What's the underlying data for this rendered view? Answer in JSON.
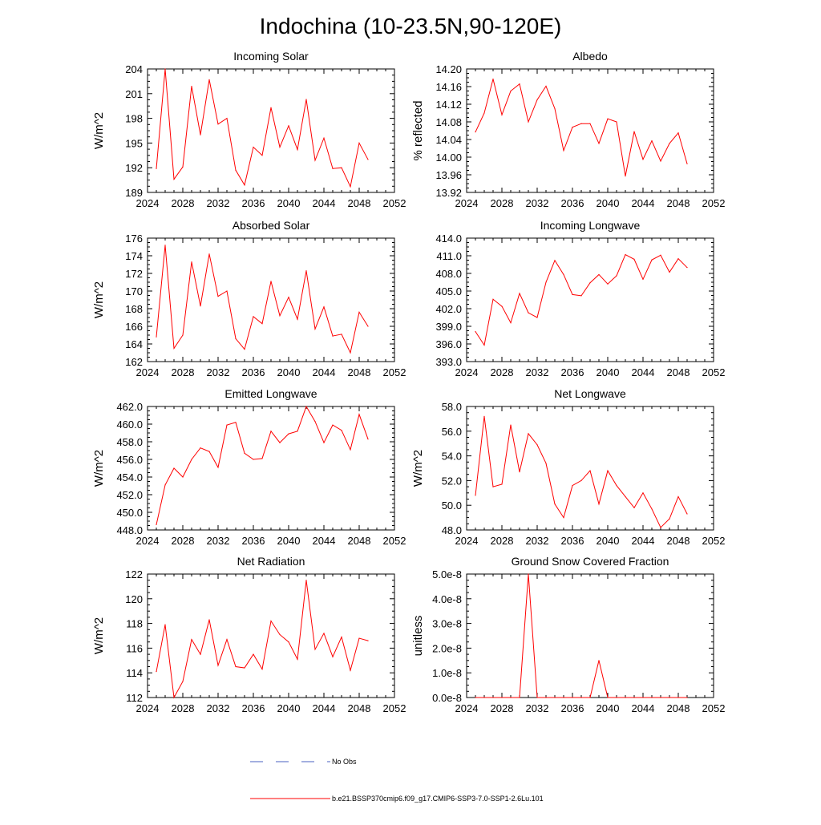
{
  "title": "Indochina (10-23.5N,90-120E)",
  "colors": {
    "series": "#ff0000",
    "obs": "#4a5fc1",
    "axis": "#000000"
  },
  "legend": {
    "obs_label": "No Obs",
    "model_label": "b.e21.BSSP370cmip6.f09_g17.CMIP6-SSP3-7.0-SSP1-2.6Lu.101"
  },
  "chart_data": [
    {
      "type": "line",
      "title": "Incoming Solar",
      "ylabel": "W/m^2",
      "xlim": [
        2024,
        2052
      ],
      "ylim": [
        189,
        204
      ],
      "xticks": [
        "2024",
        "2028",
        "2032",
        "2036",
        "2040",
        "2044",
        "2048",
        "2052"
      ],
      "yticks": [
        "189",
        "192",
        "195",
        "198",
        "201",
        "204"
      ],
      "x": [
        2025,
        2026,
        2027,
        2028,
        2029,
        2030,
        2031,
        2032,
        2033,
        2034,
        2035,
        2036,
        2037,
        2038,
        2039,
        2040,
        2041,
        2042,
        2043,
        2044,
        2045,
        2046,
        2047,
        2048,
        2049
      ],
      "series": [
        {
          "values": [
            191.9,
            204.0,
            190.6,
            192.1,
            201.9,
            196.0,
            202.7,
            197.3,
            198.0,
            191.7,
            189.9,
            194.5,
            193.5,
            199.3,
            194.5,
            197.1,
            194.2,
            200.3,
            192.9,
            195.6,
            191.9,
            192.0,
            189.7,
            195.0,
            193.0
          ]
        }
      ]
    },
    {
      "type": "line",
      "title": "Albedo",
      "ylabel": "% reflected",
      "xlim": [
        2024,
        2052
      ],
      "ylim": [
        13.92,
        14.2
      ],
      "xticks": [
        "2024",
        "2028",
        "2032",
        "2036",
        "2040",
        "2044",
        "2048",
        "2052"
      ],
      "yticks": [
        "13.92",
        "13.96",
        "14.00",
        "14.04",
        "14.08",
        "14.12",
        "14.16",
        "14.20"
      ],
      "x": [
        2025,
        2026,
        2027,
        2028,
        2029,
        2030,
        2031,
        2032,
        2033,
        2034,
        2035,
        2036,
        2037,
        2038,
        2039,
        2040,
        2041,
        2042,
        2043,
        2044,
        2045,
        2046,
        2047,
        2048,
        2049
      ],
      "series": [
        {
          "values": [
            14.057,
            14.1,
            14.177,
            14.096,
            14.15,
            14.166,
            14.08,
            14.13,
            14.161,
            14.11,
            14.015,
            14.068,
            14.076,
            14.076,
            14.031,
            14.087,
            14.08,
            13.957,
            14.058,
            13.995,
            14.037,
            13.991,
            14.031,
            14.055,
            13.985
          ]
        }
      ]
    },
    {
      "type": "line",
      "title": "Absorbed Solar",
      "ylabel": "W/m^2",
      "xlim": [
        2024,
        2052
      ],
      "ylim": [
        162,
        176
      ],
      "xticks": [
        "2024",
        "2028",
        "2032",
        "2036",
        "2040",
        "2044",
        "2048",
        "2052"
      ],
      "yticks": [
        "162",
        "164",
        "166",
        "168",
        "170",
        "172",
        "174",
        "176"
      ],
      "x": [
        2025,
        2026,
        2027,
        2028,
        2029,
        2030,
        2031,
        2032,
        2033,
        2034,
        2035,
        2036,
        2037,
        2038,
        2039,
        2040,
        2041,
        2042,
        2043,
        2044,
        2045,
        2046,
        2047,
        2048,
        2049
      ],
      "series": [
        {
          "values": [
            164.8,
            175.2,
            163.5,
            165.0,
            173.3,
            168.3,
            174.2,
            169.4,
            170.0,
            164.6,
            163.4,
            167.1,
            166.3,
            171.1,
            167.2,
            169.3,
            166.8,
            172.3,
            165.7,
            168.2,
            164.9,
            165.1,
            163.0,
            167.6,
            166.0
          ]
        }
      ]
    },
    {
      "type": "line",
      "title": "Incoming Longwave",
      "ylabel": "",
      "xlim": [
        2024,
        2052
      ],
      "ylim": [
        393.0,
        414.0
      ],
      "xticks": [
        "2024",
        "2028",
        "2032",
        "2036",
        "2040",
        "2044",
        "2048",
        "2052"
      ],
      "yticks": [
        "393.0",
        "396.0",
        "399.0",
        "402.0",
        "405.0",
        "408.0",
        "411.0",
        "414.0"
      ],
      "x": [
        2025,
        2026,
        2027,
        2028,
        2029,
        2030,
        2031,
        2032,
        2033,
        2034,
        2035,
        2036,
        2037,
        2038,
        2039,
        2040,
        2041,
        2042,
        2043,
        2044,
        2045,
        2046,
        2047,
        2048,
        2049
      ],
      "series": [
        {
          "values": [
            398.1,
            395.8,
            403.6,
            402.4,
            399.6,
            404.6,
            401.3,
            400.5,
            406.5,
            410.2,
            407.8,
            404.4,
            404.2,
            406.4,
            407.8,
            406.2,
            407.6,
            411.2,
            410.4,
            407.0,
            410.3,
            411.1,
            408.2,
            410.5,
            409.0
          ]
        }
      ]
    },
    {
      "type": "line",
      "title": "Emitted Longwave",
      "ylabel": "W/m^2",
      "xlim": [
        2024,
        2052
      ],
      "ylim": [
        448.0,
        462.0
      ],
      "xticks": [
        "2024",
        "2028",
        "2032",
        "2036",
        "2040",
        "2044",
        "2048",
        "2052"
      ],
      "yticks": [
        "448.0",
        "450.0",
        "452.0",
        "454.0",
        "456.0",
        "458.0",
        "460.0",
        "462.0"
      ],
      "x": [
        2025,
        2026,
        2027,
        2028,
        2029,
        2030,
        2031,
        2032,
        2033,
        2034,
        2035,
        2036,
        2037,
        2038,
        2039,
        2040,
        2041,
        2042,
        2043,
        2044,
        2045,
        2046,
        2047,
        2048,
        2049
      ],
      "series": [
        {
          "values": [
            448.6,
            453.1,
            455.0,
            454.0,
            456.0,
            457.3,
            456.9,
            455.1,
            459.9,
            460.2,
            456.7,
            456.0,
            456.1,
            459.2,
            457.9,
            458.9,
            459.2,
            462.0,
            460.3,
            457.9,
            459.9,
            459.3,
            457.1,
            461.1,
            458.3
          ]
        }
      ]
    },
    {
      "type": "line",
      "title": "Net Longwave",
      "ylabel": "W/m^2",
      "xlim": [
        2024,
        2052
      ],
      "ylim": [
        48.0,
        58.0
      ],
      "xticks": [
        "2024",
        "2028",
        "2032",
        "2036",
        "2040",
        "2044",
        "2048",
        "2052"
      ],
      "yticks": [
        "48.0",
        "50.0",
        "52.0",
        "54.0",
        "56.0",
        "58.0"
      ],
      "x": [
        2025,
        2026,
        2027,
        2028,
        2029,
        2030,
        2031,
        2032,
        2033,
        2034,
        2035,
        2036,
        2037,
        2038,
        2039,
        2040,
        2041,
        2042,
        2043,
        2044,
        2045,
        2046,
        2047,
        2048,
        2049
      ],
      "series": [
        {
          "values": [
            50.8,
            57.2,
            51.5,
            51.7,
            56.5,
            52.7,
            55.8,
            54.9,
            53.4,
            50.1,
            49.0,
            51.6,
            52.0,
            52.8,
            50.1,
            52.8,
            51.6,
            50.7,
            49.8,
            51.0,
            49.7,
            48.2,
            48.9,
            50.7,
            49.3
          ]
        }
      ]
    },
    {
      "type": "line",
      "title": "Net Radiation",
      "ylabel": "W/m^2",
      "xlim": [
        2024,
        2052
      ],
      "ylim": [
        112,
        122
      ],
      "xticks": [
        "2024",
        "2028",
        "2032",
        "2036",
        "2040",
        "2044",
        "2048",
        "2052"
      ],
      "yticks": [
        "112",
        "114",
        "116",
        "118",
        "120",
        "122"
      ],
      "x": [
        2025,
        2026,
        2027,
        2028,
        2029,
        2030,
        2031,
        2032,
        2033,
        2034,
        2035,
        2036,
        2037,
        2038,
        2039,
        2040,
        2041,
        2042,
        2043,
        2044,
        2045,
        2046,
        2047,
        2048,
        2049
      ],
      "series": [
        {
          "values": [
            114.1,
            117.9,
            112.0,
            113.3,
            116.7,
            115.5,
            118.3,
            114.6,
            116.7,
            114.5,
            114.4,
            115.5,
            114.3,
            118.2,
            117.1,
            116.5,
            115.1,
            121.5,
            115.9,
            117.2,
            115.3,
            116.9,
            114.2,
            116.8,
            116.6
          ]
        }
      ]
    },
    {
      "type": "line",
      "title": "Ground Snow Covered Fraction",
      "ylabel": "unitless",
      "xlim": [
        2024,
        2052
      ],
      "ylim": [
        0,
        5e-08
      ],
      "xticks": [
        "2024",
        "2028",
        "2032",
        "2036",
        "2040",
        "2044",
        "2048",
        "2052"
      ],
      "yticks": [
        "0.0e-8",
        "1.0e-8",
        "2.0e-8",
        "3.0e-8",
        "4.0e-8",
        "5.0e-8"
      ],
      "x": [
        2025,
        2026,
        2027,
        2028,
        2029,
        2030,
        2031,
        2032,
        2033,
        2034,
        2035,
        2036,
        2037,
        2038,
        2039,
        2040,
        2041,
        2042,
        2043,
        2044,
        2045,
        2046,
        2047,
        2048,
        2049
      ],
      "series": [
        {
          "values": [
            0,
            0,
            0,
            0,
            0,
            0,
            5e-08,
            0,
            0,
            0,
            0,
            0,
            0,
            0,
            1.5e-08,
            0,
            0,
            0,
            0,
            0,
            0,
            0,
            0,
            0,
            0
          ]
        }
      ]
    }
  ]
}
